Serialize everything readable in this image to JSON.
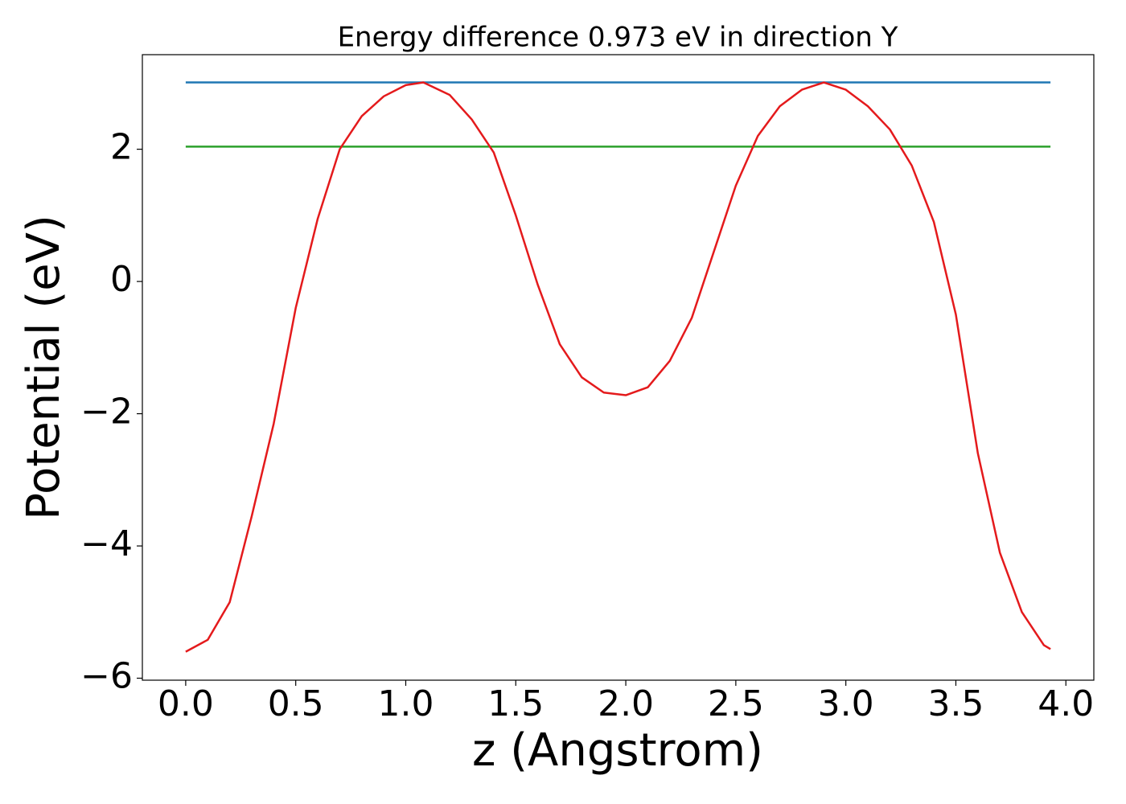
{
  "chart_data": {
    "type": "line",
    "title": "Energy difference 0.973 eV in direction Y",
    "x_label": "z (Angstrom)",
    "y_label": "Potential (eV)",
    "xlim": [
      -0.197,
      4.127
    ],
    "ylim": [
      -6.03,
      3.43
    ],
    "xticks": [
      {
        "value": 0,
        "label": "0.0"
      },
      {
        "value": 0.5,
        "label": "0.5"
      },
      {
        "value": 1,
        "label": "1.0"
      },
      {
        "value": 1.5,
        "label": "1.5"
      },
      {
        "value": 2,
        "label": "2.0"
      },
      {
        "value": 2.5,
        "label": "2.5"
      },
      {
        "value": 3,
        "label": "3.0"
      },
      {
        "value": 3.5,
        "label": "3.5"
      },
      {
        "value": 4,
        "label": "4.0"
      }
    ],
    "yticks": [
      {
        "value": -6,
        "label": "−6"
      },
      {
        "value": -4,
        "label": "−4"
      },
      {
        "value": -2,
        "label": "−2"
      },
      0,
      2
    ],
    "grid": false,
    "series": [
      {
        "color": "#1f77b4",
        "x": [
          0,
          3.93
        ],
        "values": [
          3.01,
          3.01
        ]
      },
      {
        "color": "#2ca02c",
        "x": [
          0,
          3.93
        ],
        "values": [
          2.04,
          2.04
        ]
      },
      {
        "color": "#e41a1c",
        "x": [
          0,
          0.1,
          0.2,
          0.3,
          0.4,
          0.5,
          0.6,
          0.7,
          0.8,
          0.9,
          1.0,
          1.08,
          1.2,
          1.3,
          1.4,
          1.5,
          1.6,
          1.7,
          1.8,
          1.9,
          2.0,
          2.1,
          2.2,
          2.3,
          2.4,
          2.5,
          2.6,
          2.7,
          2.8,
          2.9,
          3.0,
          3.1,
          3.2,
          3.3,
          3.4,
          3.5,
          3.6,
          3.7,
          3.8,
          3.9,
          3.93
        ],
        "values": [
          -5.6,
          -5.42,
          -4.85,
          -3.55,
          -2.15,
          -0.4,
          0.95,
          2.0,
          2.5,
          2.8,
          2.97,
          3.01,
          2.82,
          2.45,
          1.95,
          1.0,
          -0.05,
          -0.95,
          -1.45,
          -1.68,
          -1.72,
          -1.6,
          -1.2,
          -0.55,
          0.45,
          1.45,
          2.2,
          2.65,
          2.9,
          3.01,
          2.9,
          2.65,
          2.3,
          1.75,
          0.9,
          -0.5,
          -2.6,
          -4.1,
          -5.0,
          -5.5,
          -5.56
        ]
      }
    ]
  }
}
